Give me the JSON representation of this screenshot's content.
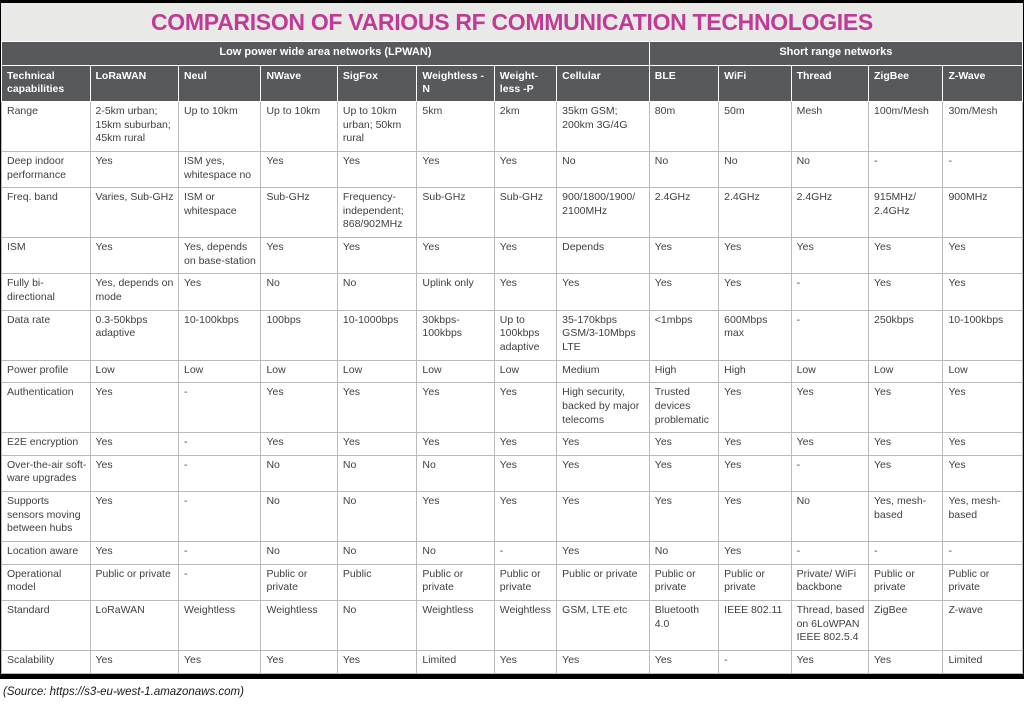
{
  "title": "COMPARISON OF VARIOUS RF COMMUNICATION TECHNOLOGIES",
  "source_note": "(Source: https://s3-eu-west-1.amazonaws.com)",
  "colors": {
    "accent_magenta": "#bf3b96",
    "header_gray": "#58595b",
    "title_background": "#e9e9e7",
    "body_text": "#3f4041",
    "grid_line": "#b9bab9",
    "frame_black": "#000000"
  },
  "table": {
    "groups": [
      {
        "label": "Low power wide area networks (LPWAN)",
        "span": 8
      },
      {
        "label": "Short range networks",
        "span": 5
      }
    ],
    "columns": [
      "Technical capabilities",
      "LoRaWAN",
      "Neul",
      "NWave",
      "SigFox",
      "Weightless -N",
      "Weight-less -P",
      "Cellular",
      "BLE",
      "WiFi",
      "Thread",
      "ZigBee",
      "Z-Wave"
    ],
    "rows": [
      {
        "label": "Range",
        "values": [
          "2-5km urban; 15km suburban; 45km rural",
          "Up to 10km",
          "Up to 10km",
          "Up to 10km urban; 50km rural",
          "5km",
          "2km",
          "35km GSM; 200km 3G/4G",
          "80m",
          "50m",
          "Mesh",
          "100m/Mesh",
          "30m/Mesh"
        ]
      },
      {
        "label": "Deep indoor performance",
        "values": [
          "Yes",
          "ISM yes, whitespace no",
          "Yes",
          "Yes",
          "Yes",
          "Yes",
          "No",
          "No",
          "No",
          "No",
          "-",
          "-"
        ]
      },
      {
        "label": "Freq. band",
        "values": [
          "Varies, Sub-GHz",
          "ISM or whitespace",
          "Sub-GHz",
          "Frequency-independent; 868/902MHz",
          "Sub-GHz",
          "Sub-GHz",
          "900/1800/1900/ 2100MHz",
          "2.4GHz",
          "2.4GHz",
          "2.4GHz",
          "915MHz/ 2.4GHz",
          "900MHz"
        ]
      },
      {
        "label": "ISM",
        "values": [
          "Yes",
          "Yes, depends on base-station",
          "Yes",
          "Yes",
          "Yes",
          "Yes",
          "Depends",
          "Yes",
          "Yes",
          "Yes",
          "Yes",
          "Yes"
        ]
      },
      {
        "label": "Fully bi-directional",
        "values": [
          "Yes, depends on mode",
          "Yes",
          "No",
          "No",
          "Uplink only",
          "Yes",
          "Yes",
          "Yes",
          "Yes",
          "-",
          "Yes",
          "Yes"
        ]
      },
      {
        "label": "Data rate",
        "values": [
          "0.3-50kbps adaptive",
          "10-100kbps",
          "100bps",
          "10-1000bps",
          "30kbps-100kbps",
          "Up to 100kbps adaptive",
          "35-170kbps GSM/3-10Mbps LTE",
          "<1mbps",
          "600Mbps max",
          "-",
          "250kbps",
          "10-100kbps"
        ]
      },
      {
        "label": "Power profile",
        "values": [
          "Low",
          "Low",
          "Low",
          "Low",
          "Low",
          "Low",
          "Medium",
          "High",
          "High",
          "Low",
          "Low",
          "Low"
        ]
      },
      {
        "label": "Authentication",
        "values": [
          "Yes",
          "-",
          "Yes",
          "Yes",
          "Yes",
          "Yes",
          "High security, backed by major telecoms",
          "Trusted devices problematic",
          "Yes",
          "Yes",
          "Yes",
          "Yes"
        ]
      },
      {
        "label": "E2E encryption",
        "values": [
          "Yes",
          "-",
          "Yes",
          "Yes",
          "Yes",
          "Yes",
          "Yes",
          "Yes",
          "Yes",
          "Yes",
          "Yes",
          "Yes"
        ]
      },
      {
        "label": "Over-the-air soft-ware upgrades",
        "values": [
          "Yes",
          "-",
          "No",
          "No",
          "No",
          "Yes",
          "Yes",
          "Yes",
          "Yes",
          "-",
          "Yes",
          "Yes"
        ]
      },
      {
        "label": "Supports sensors moving between hubs",
        "values": [
          "Yes",
          "-",
          "No",
          "No",
          "Yes",
          "Yes",
          "Yes",
          "Yes",
          "Yes",
          "No",
          "Yes, mesh-based",
          "Yes, mesh-based"
        ]
      },
      {
        "label": "Location aware",
        "values": [
          "Yes",
          "-",
          "No",
          "No",
          "No",
          "-",
          "Yes",
          "No",
          "Yes",
          "-",
          "-",
          "-"
        ]
      },
      {
        "label": "Operational model",
        "values": [
          "Public or private",
          "-",
          "Public or private",
          "Public",
          "Public or private",
          "Public or private",
          "Public or private",
          "Public or private",
          "Public or private",
          "Private/ WiFi backbone",
          "Public or private",
          "Public or private"
        ]
      },
      {
        "label": "Standard",
        "values": [
          "LoRaWAN",
          "Weightless",
          "Weightless",
          "No",
          "Weightless",
          "Weightless",
          "GSM, LTE etc",
          "Bluetooth 4.0",
          "IEEE 802.11",
          "Thread, based on 6LoWPAN IEEE 802.5.4",
          "ZigBee",
          "Z-wave"
        ]
      },
      {
        "label": "Scalability",
        "values": [
          "Yes",
          "Yes",
          "Yes",
          "Yes",
          "Limited",
          "Yes",
          "Yes",
          "Yes",
          "-",
          "Yes",
          "Yes",
          "Limited"
        ]
      }
    ]
  }
}
